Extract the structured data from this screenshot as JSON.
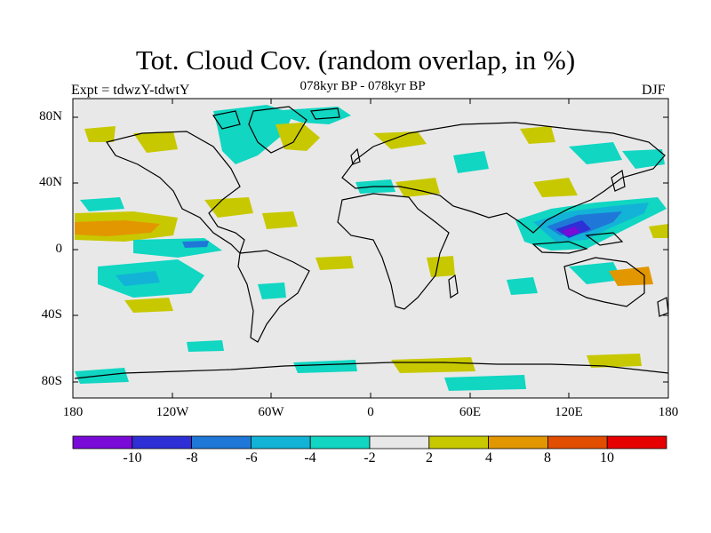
{
  "title": "Tot. Cloud Cov. (random overlap, in %)",
  "subtitle": "078kyr BP - 078kyr BP",
  "experiment": "Expt = tdwzY-tdwtY",
  "season": "DJF",
  "axes": {
    "lat_labels": [
      "80N",
      "40N",
      "0",
      "40S",
      "80S"
    ],
    "lon_labels": [
      "180",
      "120W",
      "60W",
      "0",
      "60E",
      "120E",
      "180"
    ]
  },
  "colorbar": {
    "labels": [
      "-10",
      "-8",
      "-6",
      "-4",
      "-2",
      "2",
      "4",
      "8",
      "10"
    ],
    "colors": [
      "#7a0ad8",
      "#2f2fd6",
      "#1f78d8",
      "#12b3d6",
      "#10d6c2",
      "#e8e8e8",
      "#c8c800",
      "#e29700",
      "#e24e00",
      "#e60000"
    ]
  },
  "map": {
    "background": "#e8e8e8",
    "coastline_color": "#000000"
  }
}
